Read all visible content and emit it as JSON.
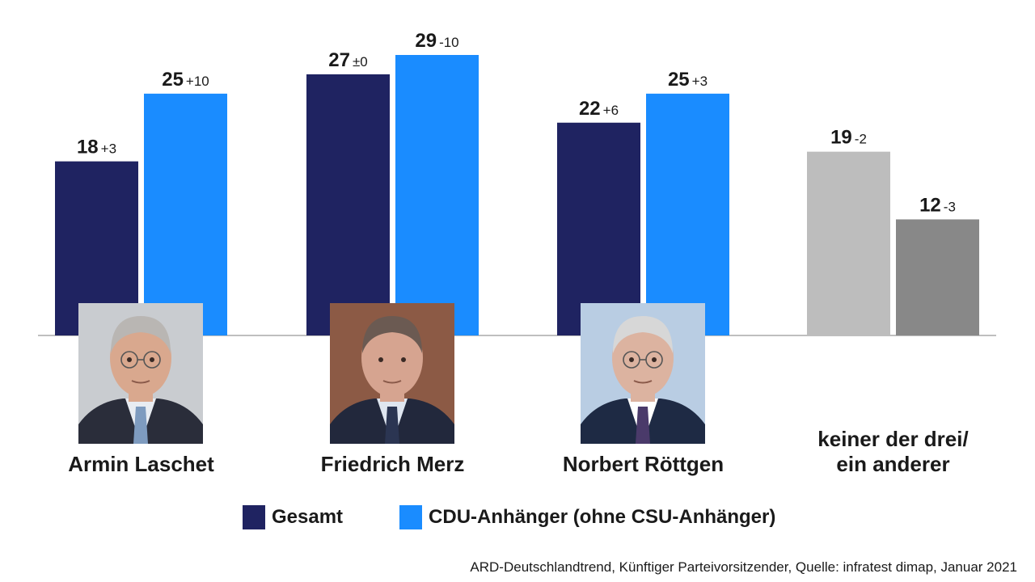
{
  "chart_data": {
    "type": "bar",
    "categories": [
      "Armin Laschet",
      "Friedrich Merz",
      "Norbert Röttgen",
      "keiner der drei/\nein anderer"
    ],
    "category_lines": [
      [
        "Armin Laschet"
      ],
      [
        "Friedrich Merz"
      ],
      [
        "Norbert Röttgen"
      ],
      [
        "keiner der drei/",
        "ein anderer"
      ]
    ],
    "series": [
      {
        "name": "Gesamt",
        "values": [
          18,
          27,
          22,
          19
        ],
        "changes": [
          "+3",
          "±0",
          "+6",
          "-2"
        ]
      },
      {
        "name": "CDU-Anhänger (ohne CSU-Anhänger)",
        "values": [
          25,
          29,
          25,
          12
        ],
        "changes": [
          "+10",
          "-10",
          "+3",
          "-3"
        ]
      }
    ],
    "ylim": [
      0,
      29
    ],
    "grid": false,
    "legend_position": "bottom",
    "colors": {
      "gesamt": "#1f2361",
      "cdu": "#1a8cff",
      "other_gesamt": "#bdbdbd",
      "other_cdu": "#888888",
      "axis": "#999999"
    }
  },
  "legend": [
    {
      "label": "Gesamt",
      "color": "#1f2361"
    },
    {
      "label": "CDU-Anhänger (ohne CSU-Anhänger)",
      "color": "#1a8cff"
    }
  ],
  "photos": [
    {
      "name": "armin-laschet-photo"
    },
    {
      "name": "friedrich-merz-photo"
    },
    {
      "name": "norbert-roettgen-photo"
    }
  ],
  "source": "ARD-Deutschlandtrend, Künftiger Parteivorsitzender, Quelle: infratest dimap, Januar 2021"
}
